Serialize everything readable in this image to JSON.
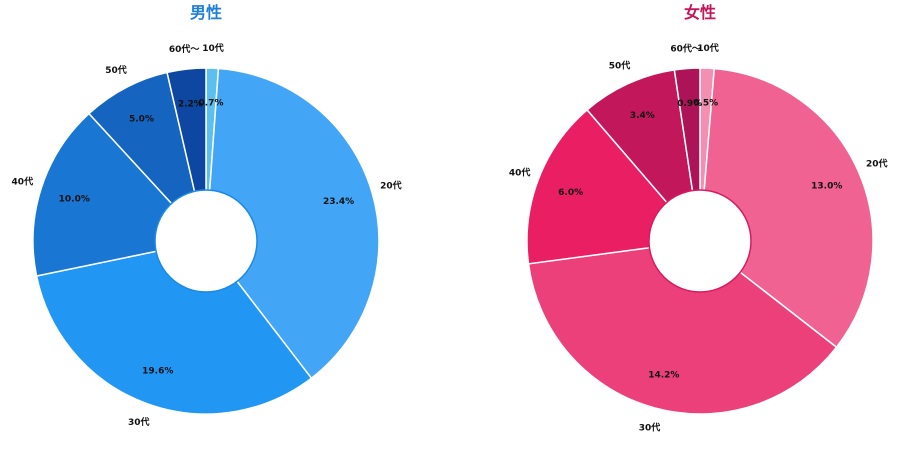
{
  "chart_data": [
    {
      "type": "pie",
      "title": "男性",
      "title_color": "#1E7FD8",
      "categories": [
        "10代",
        "20代",
        "30代",
        "40代",
        "50代",
        "60代〜"
      ],
      "values": [
        0.7,
        23.4,
        19.6,
        10.0,
        5.0,
        2.2
      ],
      "value_labels": [
        "0.7%",
        "23.4%",
        "19.6%",
        "10.0%",
        "5.0%",
        "2.2%"
      ],
      "colors": [
        "#5BC0F0",
        "#42A5F5",
        "#2196F3",
        "#1976D2",
        "#1565C0",
        "#0D47A1"
      ],
      "hole_color": "#1E88E5",
      "donut": true
    },
    {
      "type": "pie",
      "title": "女性",
      "title_color": "#C2185B",
      "categories": [
        "10代",
        "20代",
        "30代",
        "40代",
        "50代",
        "60代〜"
      ],
      "values": [
        0.5,
        13.0,
        14.2,
        6.0,
        3.4,
        0.9
      ],
      "value_labels": [
        "0.5%",
        "13.0%",
        "14.2%",
        "6.0%",
        "3.4%",
        "0.9%"
      ],
      "colors": [
        "#F48FB1",
        "#F06292",
        "#EC407A",
        "#E91E63",
        "#C2185B",
        "#AD1457"
      ],
      "hole_color": "#D81B60",
      "donut": true
    }
  ]
}
